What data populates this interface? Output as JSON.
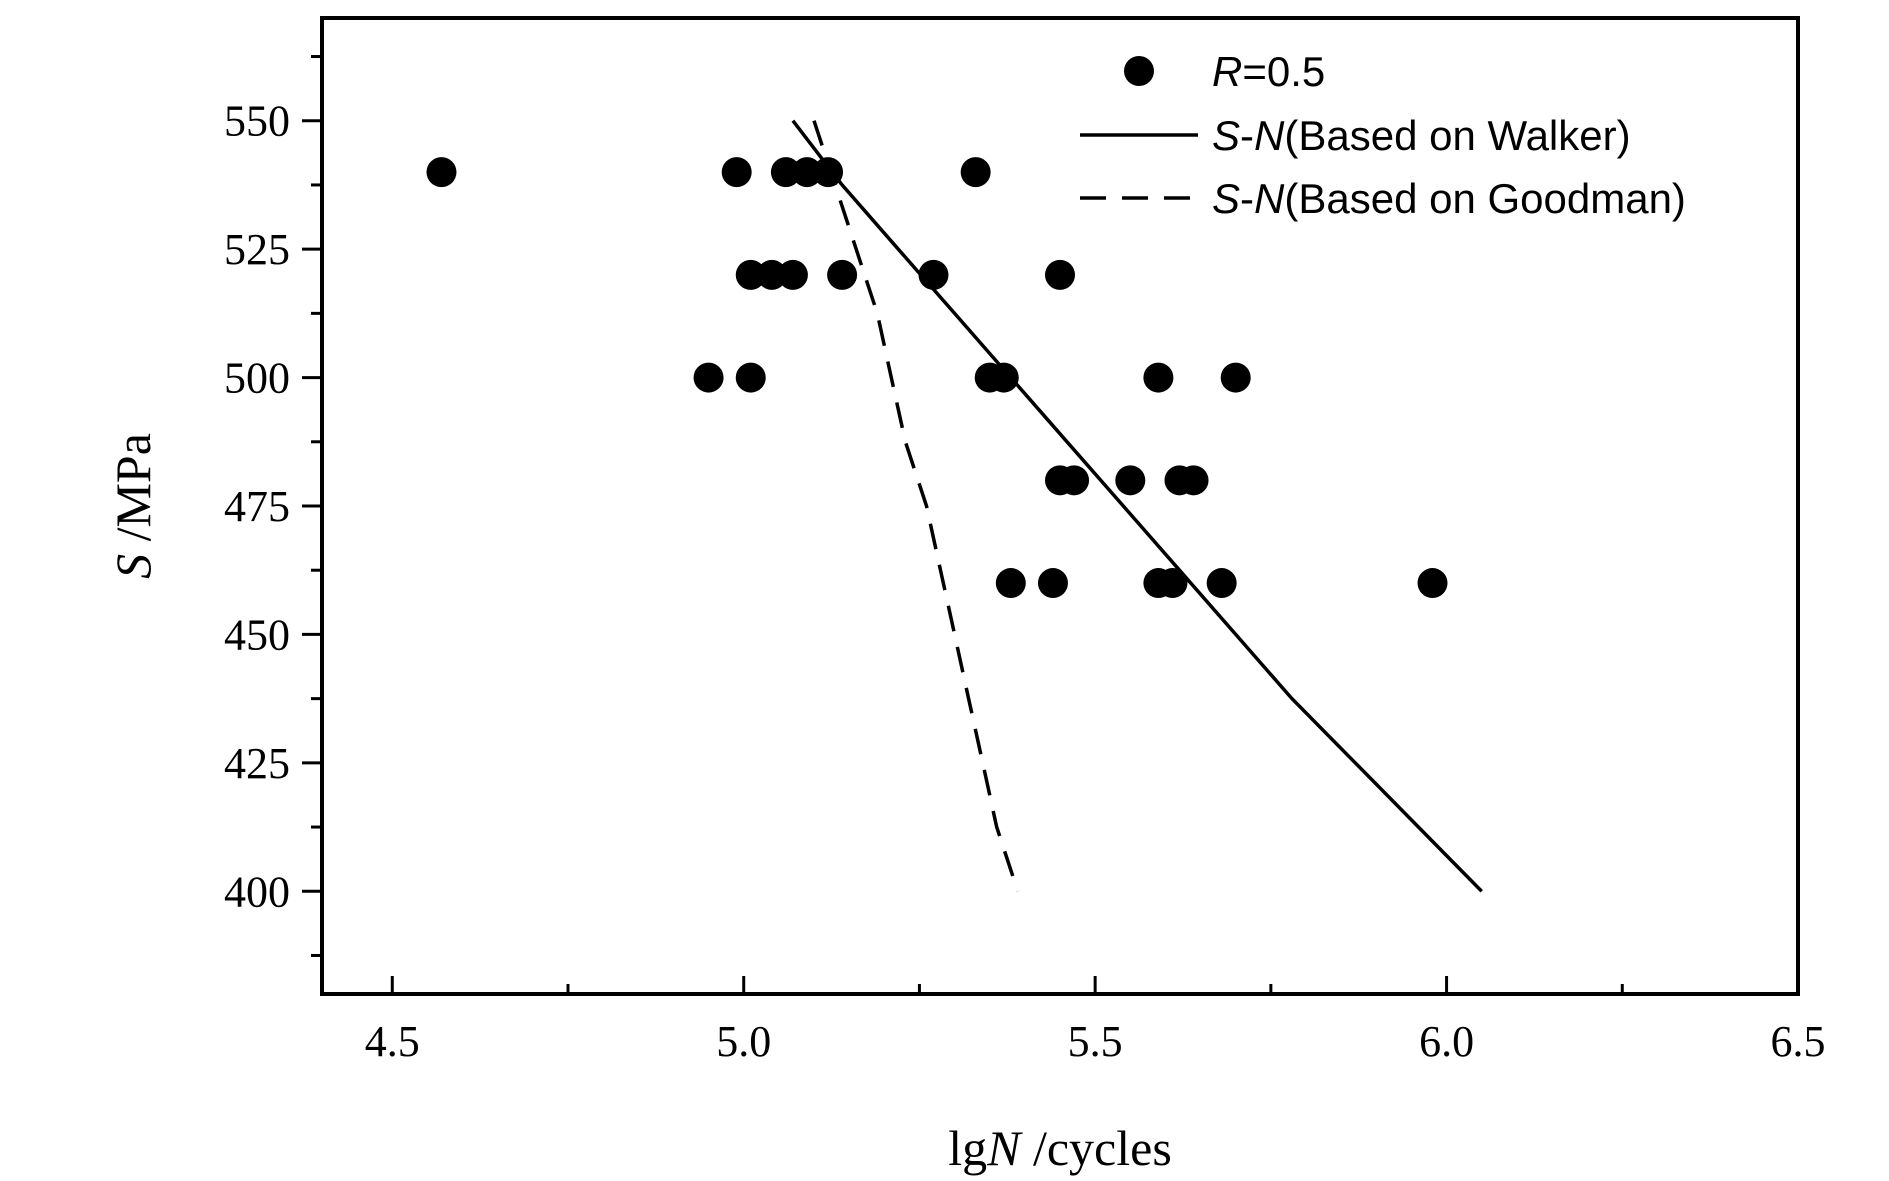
{
  "chart_data": {
    "type": "scatter",
    "xlabel": {
      "prefix": "lg",
      "var": "N",
      "suffix": " /cycles"
    },
    "ylabel": {
      "var": "S",
      "suffix": " /MPa"
    },
    "xlim": [
      4.4,
      6.5
    ],
    "ylim": [
      380,
      570
    ],
    "x_ticks": [
      4.5,
      5.0,
      5.5,
      6.0,
      6.5
    ],
    "x_tick_labels": [
      "4.5",
      "5.0",
      "5.5",
      "6.0",
      "6.5"
    ],
    "y_ticks": [
      400,
      425,
      450,
      475,
      500,
      525,
      550
    ],
    "y_tick_labels": [
      "400",
      "425",
      "450",
      "475",
      "500",
      "525",
      "550"
    ],
    "grid": false,
    "legend_position": "top-right",
    "series": [
      {
        "name": "R=0.5",
        "name_parts": {
          "var": "R",
          "rest": "=0.5"
        },
        "kind": "scatter",
        "marker": "filled-circle",
        "points": [
          [
            4.57,
            540
          ],
          [
            4.99,
            540
          ],
          [
            5.06,
            540
          ],
          [
            5.09,
            540
          ],
          [
            5.12,
            540
          ],
          [
            5.33,
            540
          ],
          [
            5.01,
            520
          ],
          [
            5.04,
            520
          ],
          [
            5.07,
            520
          ],
          [
            5.14,
            520
          ],
          [
            5.27,
            520
          ],
          [
            5.45,
            520
          ],
          [
            4.95,
            500
          ],
          [
            5.01,
            500
          ],
          [
            5.35,
            500
          ],
          [
            5.37,
            500
          ],
          [
            5.59,
            500
          ],
          [
            5.7,
            500
          ],
          [
            5.45,
            480
          ],
          [
            5.47,
            480
          ],
          [
            5.55,
            480
          ],
          [
            5.62,
            480
          ],
          [
            5.64,
            480
          ],
          [
            5.38,
            460
          ],
          [
            5.44,
            460
          ],
          [
            5.59,
            460
          ],
          [
            5.61,
            460
          ],
          [
            5.68,
            460
          ],
          [
            5.98,
            460
          ]
        ]
      },
      {
        "name": "S-N(Based on Walker)",
        "name_parts": {
          "var1": "S",
          "dash": "-",
          "var2": "N",
          "rest": "(Based on Walker)"
        },
        "kind": "line",
        "line_style": "solid",
        "points": [
          [
            5.07,
            550
          ],
          [
            5.14,
            537.5
          ],
          [
            5.22,
            525
          ],
          [
            5.3,
            512.5
          ],
          [
            5.38,
            500
          ],
          [
            5.46,
            487.5
          ],
          [
            5.54,
            475
          ],
          [
            5.62,
            462.5
          ],
          [
            5.7,
            450
          ],
          [
            5.78,
            437.5
          ],
          [
            5.87,
            425
          ],
          [
            5.96,
            412.5
          ],
          [
            6.05,
            400
          ]
        ]
      },
      {
        "name": "S-N(Based on Goodman)",
        "name_parts": {
          "var1": "S",
          "dash": "-",
          "var2": "N",
          "rest": "(Based on Goodman)"
        },
        "kind": "line",
        "line_style": "dashed",
        "points": [
          [
            5.1,
            550
          ],
          [
            5.13,
            537.5
          ],
          [
            5.16,
            525
          ],
          [
            5.19,
            512.5
          ],
          [
            5.21,
            500
          ],
          [
            5.23,
            487.5
          ],
          [
            5.26,
            475
          ],
          [
            5.28,
            462.5
          ],
          [
            5.3,
            450
          ],
          [
            5.32,
            437.5
          ],
          [
            5.34,
            425
          ],
          [
            5.36,
            412.5
          ],
          [
            5.39,
            400
          ]
        ]
      }
    ]
  }
}
